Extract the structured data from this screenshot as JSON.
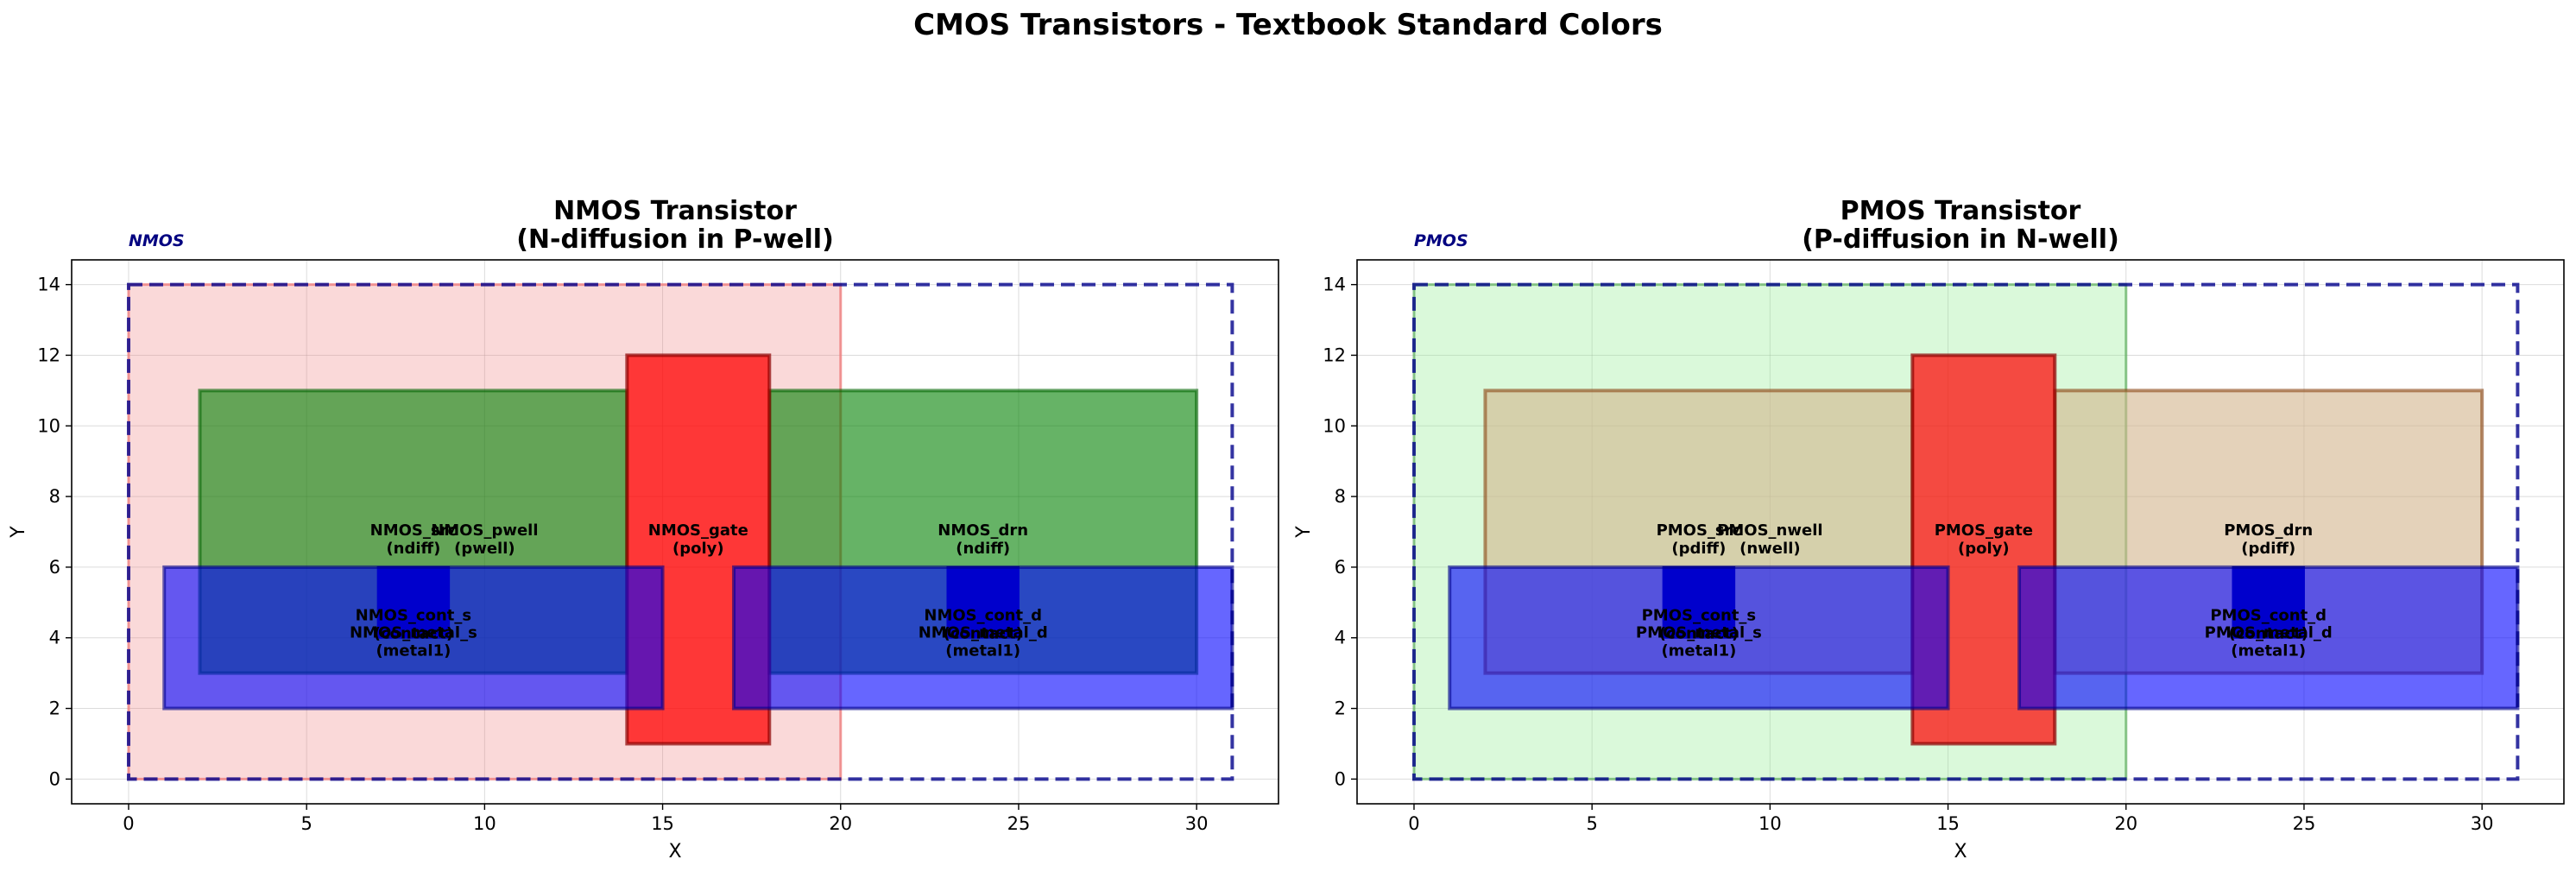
{
  "title": "CMOS Transistors - Textbook Standard Colors",
  "chart_data": [
    {
      "type": "layout",
      "tag": "NMOS",
      "title": [
        "NMOS Transistor",
        "(N-diffusion in P-well)"
      ],
      "xlabel": "X",
      "ylabel": "Y",
      "xlim": [
        -1.6,
        32.3
      ],
      "ylim": [
        -0.7,
        14.7
      ],
      "xticks": [
        0,
        5,
        10,
        15,
        20,
        25,
        30
      ],
      "yticks": [
        0,
        2,
        4,
        6,
        8,
        10,
        12,
        14
      ],
      "grid": true,
      "shapes": [
        {
          "x0": 0,
          "y0": 0,
          "x1": 20,
          "y1": 14,
          "fill": "#f08080",
          "fill_opacity": 0.3,
          "stroke": "#f08080",
          "stroke_opacity": 0.8,
          "dashed": false,
          "stroke_width": 3
        },
        {
          "x0": 2,
          "y0": 3,
          "x1": 14,
          "y1": 11,
          "fill": "#008000",
          "fill_opacity": 0.6,
          "stroke": "#006400",
          "stroke_opacity": 0.6,
          "dashed": false,
          "stroke_width": 4
        },
        {
          "x0": 18,
          "y0": 3,
          "x1": 30,
          "y1": 11,
          "fill": "#008000",
          "fill_opacity": 0.6,
          "stroke": "#006400",
          "stroke_opacity": 0.6,
          "dashed": false,
          "stroke_width": 4
        },
        {
          "x0": 14,
          "y0": 1,
          "x1": 18,
          "y1": 12,
          "fill": "#ff0000",
          "fill_opacity": 0.75,
          "stroke": "#8b0000",
          "stroke_opacity": 0.7,
          "dashed": false,
          "stroke_width": 4
        },
        {
          "x0": 7,
          "y0": 4,
          "x1": 9,
          "y1": 6,
          "fill": "#000080",
          "fill_opacity": 1,
          "stroke": "#000080",
          "stroke_opacity": 1,
          "dashed": false,
          "stroke_width": 2
        },
        {
          "x0": 23,
          "y0": 4,
          "x1": 25,
          "y1": 6,
          "fill": "#000080",
          "fill_opacity": 1,
          "stroke": "#000080",
          "stroke_opacity": 1,
          "dashed": false,
          "stroke_width": 2
        },
        {
          "x0": 1,
          "y0": 2,
          "x1": 15,
          "y1": 6,
          "fill": "#0000ff",
          "fill_opacity": 0.6,
          "stroke": "#00008b",
          "stroke_opacity": 0.6,
          "dashed": false,
          "stroke_width": 4
        },
        {
          "x0": 17,
          "y0": 2,
          "x1": 31,
          "y1": 6,
          "fill": "#0000ff",
          "fill_opacity": 0.6,
          "stroke": "#00008b",
          "stroke_opacity": 0.6,
          "dashed": false,
          "stroke_width": 4
        },
        {
          "x0": 0,
          "y0": 0,
          "x1": 31,
          "y1": 14,
          "fill": "none",
          "fill_opacity": 0,
          "stroke": "#00008b",
          "stroke_opacity": 0.8,
          "dashed": true,
          "stroke_width": 4
        }
      ],
      "labels": [
        {
          "x": 8,
          "y": 6.9,
          "lines": [
            "NMOS_src",
            "(ndiff)"
          ]
        },
        {
          "x": 10,
          "y": 6.9,
          "lines": [
            "NMOS_pwell",
            "(pwell)"
          ]
        },
        {
          "x": 16,
          "y": 6.9,
          "lines": [
            "NMOS_gate",
            "(poly)"
          ]
        },
        {
          "x": 24,
          "y": 6.9,
          "lines": [
            "NMOS_drn",
            "(ndiff)"
          ]
        },
        {
          "x": 8,
          "y": 4.5,
          "lines": [
            "NMOS_cont_s",
            "(contact)"
          ]
        },
        {
          "x": 24,
          "y": 4.5,
          "lines": [
            "NMOS_cont_d",
            "(contact)"
          ]
        },
        {
          "x": 8,
          "y": 4,
          "lines": [
            "NMOS_metal_s",
            "(metal1)"
          ]
        },
        {
          "x": 24,
          "y": 4,
          "lines": [
            "NMOS_metal_d",
            "(metal1)"
          ]
        }
      ]
    },
    {
      "type": "layout",
      "tag": "PMOS",
      "title": [
        "PMOS Transistor",
        "(P-diffusion in N-well)"
      ],
      "xlabel": "X",
      "ylabel": "Y",
      "xlim": [
        -1.6,
        32.3
      ],
      "ylim": [
        -0.7,
        14.7
      ],
      "xticks": [
        0,
        5,
        10,
        15,
        20,
        25,
        30
      ],
      "yticks": [
        0,
        2,
        4,
        6,
        8,
        10,
        12,
        14
      ],
      "grid": true,
      "shapes": [
        {
          "x0": 0,
          "y0": 0,
          "x1": 20,
          "y1": 14,
          "fill": "#90ee90",
          "fill_opacity": 0.33,
          "stroke": "#60b060",
          "stroke_opacity": 0.7,
          "dashed": false,
          "stroke_width": 3
        },
        {
          "x0": 2,
          "y0": 3,
          "x1": 14,
          "y1": 11,
          "fill": "#d2b48c",
          "fill_opacity": 0.6,
          "stroke": "#8b4513",
          "stroke_opacity": 0.6,
          "dashed": false,
          "stroke_width": 4
        },
        {
          "x0": 18,
          "y0": 3,
          "x1": 30,
          "y1": 11,
          "fill": "#d2b48c",
          "fill_opacity": 0.6,
          "stroke": "#8b4513",
          "stroke_opacity": 0.6,
          "dashed": false,
          "stroke_width": 4
        },
        {
          "x0": 14,
          "y0": 1,
          "x1": 18,
          "y1": 12,
          "fill": "#ff0000",
          "fill_opacity": 0.7,
          "stroke": "#8b0000",
          "stroke_opacity": 0.7,
          "dashed": false,
          "stroke_width": 4
        },
        {
          "x0": 7,
          "y0": 4,
          "x1": 9,
          "y1": 6,
          "fill": "#000080",
          "fill_opacity": 1,
          "stroke": "#000080",
          "stroke_opacity": 1,
          "dashed": false,
          "stroke_width": 2
        },
        {
          "x0": 23,
          "y0": 4,
          "x1": 25,
          "y1": 6,
          "fill": "#000080",
          "fill_opacity": 1,
          "stroke": "#000080",
          "stroke_opacity": 1,
          "dashed": false,
          "stroke_width": 2
        },
        {
          "x0": 1,
          "y0": 2,
          "x1": 15,
          "y1": 6,
          "fill": "#0000ff",
          "fill_opacity": 0.6,
          "stroke": "#00008b",
          "stroke_opacity": 0.6,
          "dashed": false,
          "stroke_width": 4
        },
        {
          "x0": 17,
          "y0": 2,
          "x1": 31,
          "y1": 6,
          "fill": "#0000ff",
          "fill_opacity": 0.6,
          "stroke": "#00008b",
          "stroke_opacity": 0.6,
          "dashed": false,
          "stroke_width": 4
        },
        {
          "x0": 0,
          "y0": 0,
          "x1": 31,
          "y1": 14,
          "fill": "none",
          "fill_opacity": 0,
          "stroke": "#00008b",
          "stroke_opacity": 0.8,
          "dashed": true,
          "stroke_width": 4
        }
      ],
      "labels": [
        {
          "x": 8,
          "y": 6.9,
          "lines": [
            "PMOS_src",
            "(pdiff)"
          ]
        },
        {
          "x": 10,
          "y": 6.9,
          "lines": [
            "PMOS_nwell",
            "(nwell)"
          ]
        },
        {
          "x": 16,
          "y": 6.9,
          "lines": [
            "PMOS_gate",
            "(poly)"
          ]
        },
        {
          "x": 24,
          "y": 6.9,
          "lines": [
            "PMOS_drn",
            "(pdiff)"
          ]
        },
        {
          "x": 8,
          "y": 4.5,
          "lines": [
            "PMOS_cont_s",
            "(contact)"
          ]
        },
        {
          "x": 24,
          "y": 4.5,
          "lines": [
            "PMOS_cont_d",
            "(contact)"
          ]
        },
        {
          "x": 8,
          "y": 4,
          "lines": [
            "PMOS_metal_s",
            "(metal1)"
          ]
        },
        {
          "x": 24,
          "y": 4,
          "lines": [
            "PMOS_metal_d",
            "(metal1)"
          ]
        }
      ]
    }
  ]
}
